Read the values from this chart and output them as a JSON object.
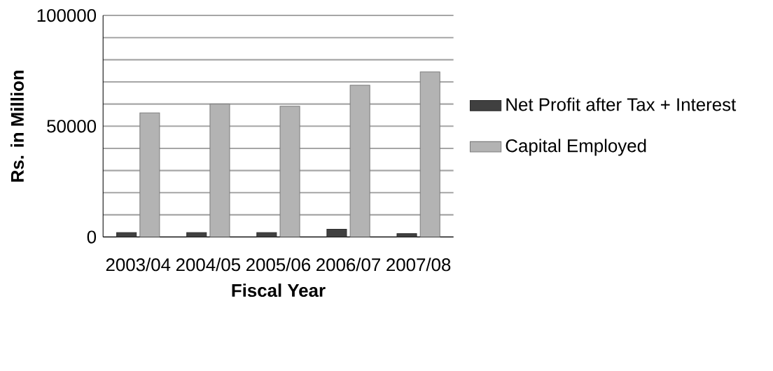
{
  "chart_data": {
    "type": "bar",
    "xlabel": "Fiscal Year",
    "ylabel": "Rs. in Million",
    "categories": [
      "2003/04",
      "2004/05",
      "2005/06",
      "2006/07",
      "2007/08"
    ],
    "series": [
      {
        "name": "Net Profit after Tax + Interest",
        "color": "#404040",
        "values": [
          2000,
          2000,
          2000,
          3500,
          1500
        ]
      },
      {
        "name": "Capital Employed",
        "color": "#b3b3b3",
        "values": [
          56000,
          60000,
          59000,
          68500,
          74500
        ]
      }
    ],
    "ylim": [
      0,
      100000
    ],
    "yticks": [
      0,
      {
        "value": 10000,
        "label": null
      },
      {
        "value": 20000,
        "label": null
      },
      {
        "value": 30000,
        "label": null
      },
      {
        "value": 40000,
        "label": null
      },
      50000,
      {
        "value": 60000,
        "label": null
      },
      {
        "value": 70000,
        "label": null
      },
      {
        "value": 80000,
        "label": null
      },
      {
        "value": 90000,
        "label": null
      },
      100000
    ],
    "grid": "y",
    "legend": "right"
  }
}
